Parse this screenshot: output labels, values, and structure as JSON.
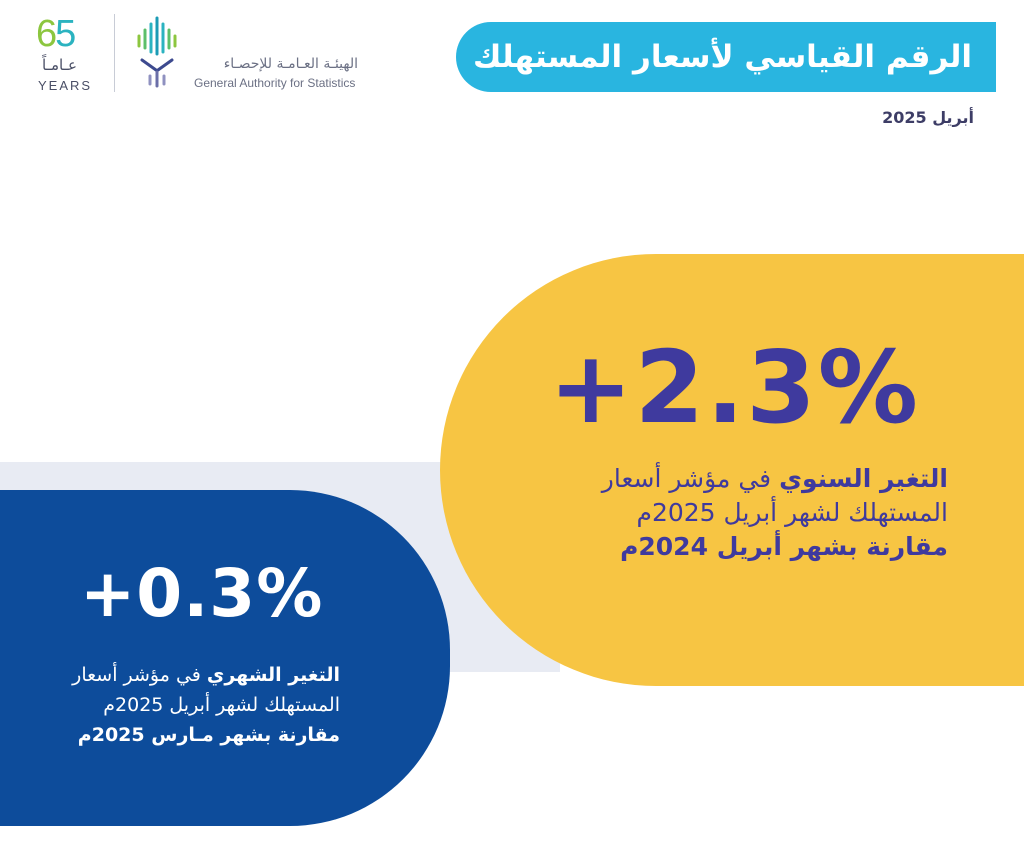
{
  "header": {
    "anniversary_number": "65",
    "anniversary_ar": "عـامـاً",
    "anniversary_en": "YEARS",
    "org_name_ar": "الهيئـة العـامـة للإحصـاء",
    "org_name_en": "General Authority for Statistics",
    "icons": [
      "anniversary-logo",
      "gastat-logo"
    ]
  },
  "title": "الرقم القياسي لأسعار المستهلك",
  "date": "أبريل 2025",
  "annual": {
    "value": "+2.3%",
    "desc_bold": "التغير السنوي",
    "desc_line1_rest": " في مؤشر أسعار",
    "desc_line2": "المستهلك لشهر أبريل 2025م",
    "desc_line3": "مقارنة بشهر أبريل 2024م"
  },
  "monthly": {
    "value": "+0.3%",
    "desc_bold": "التغير الشهري",
    "desc_line1_rest": " في مؤشر أسعار",
    "desc_line2": "المستهلك لشهر أبريل 2025م",
    "desc_line3": "مقارنة بشهر مـارس 2025م"
  },
  "colors": {
    "title_bar": "#29b5e0",
    "annual_card": "#f7c543",
    "annual_text": "#3f3a9e",
    "monthly_card": "#0d4c9b",
    "band": "#e8ebf3"
  }
}
